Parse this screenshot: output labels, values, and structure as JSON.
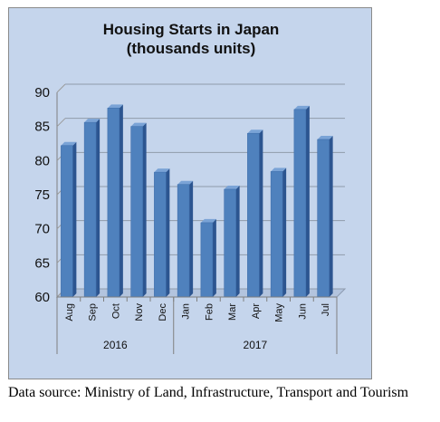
{
  "chart_data": {
    "type": "bar",
    "title": "Housing Starts in Japan",
    "subtitle": "(thousands units)",
    "categories": [
      "Aug",
      "Sep",
      "Oct",
      "Nov",
      "Dec",
      "Jan",
      "Feb",
      "Mar",
      "Apr",
      "May",
      "Jun",
      "Jul"
    ],
    "groups": [
      {
        "label": "2016",
        "categories": [
          "Aug",
          "Sep",
          "Oct",
          "Nov",
          "Dec"
        ]
      },
      {
        "label": "2017",
        "categories": [
          "Jan",
          "Feb",
          "Mar",
          "Apr",
          "May",
          "Jun",
          "Jul"
        ]
      }
    ],
    "values": [
      82.2,
      85.6,
      87.7,
      85.0,
      78.3,
      76.5,
      70.9,
      75.8,
      84.0,
      78.4,
      87.5,
      83.1
    ],
    "yticks": [
      60,
      65,
      70,
      75,
      80,
      85,
      90
    ],
    "ylim": [
      60,
      90
    ],
    "grid": true,
    "colors": {
      "bar": "#4f81bd",
      "bar_top": "#7aa3d6",
      "bar_side": "#2c5590",
      "background": "#c5d5ec"
    }
  },
  "source": "Data source: Ministry of Land, Infrastructure, Transport and Tourism"
}
